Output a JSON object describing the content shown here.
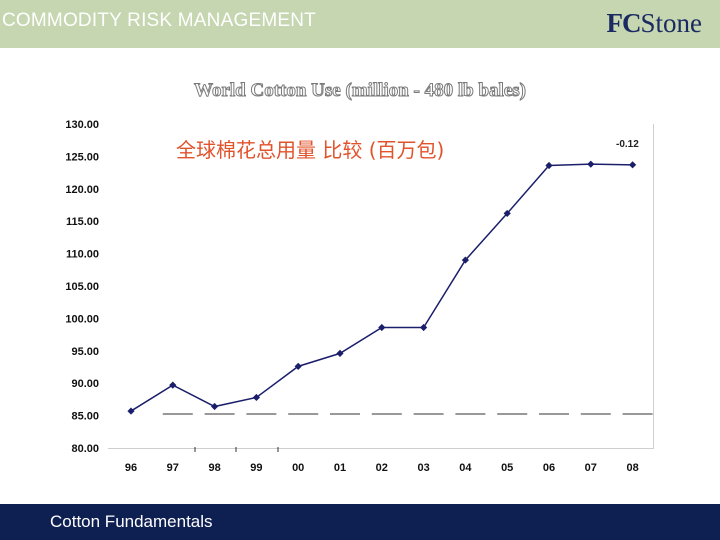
{
  "header": {
    "title": "COMMODITY RISK MANAGEMENT",
    "logo_fc": "FC",
    "logo_stone": "Stone"
  },
  "footer": {
    "text": "Cotton Fundamentals"
  },
  "colors": {
    "header_bg": "#c5d6b0",
    "footer_bg": "#0e1f52",
    "series": "#1b1f6b",
    "cn_title": "#e0532b"
  },
  "chart_data": {
    "type": "line",
    "title": "World Cotton Use (million - 480 lb bales)",
    "subtitle": "全球棉花总用量 比较 (百万包)",
    "annotation": "-0.12",
    "categories": [
      "96",
      "97",
      "98",
      "99",
      "00",
      "01",
      "02",
      "03",
      "04",
      "05",
      "06",
      "07",
      "08"
    ],
    "series": [
      {
        "values": [
          85.7,
          89.7,
          86.4,
          87.8,
          92.6,
          94.6,
          98.6,
          98.6,
          109.0,
          116.2,
          123.6,
          123.8,
          123.7
        ]
      }
    ],
    "yticks": [
      "130.00",
      "125.00",
      "120.00",
      "115.00",
      "110.00",
      "105.00",
      "100.00",
      "95.00",
      "90.00",
      "85.00",
      "80.00"
    ],
    "ylim": [
      80,
      130
    ],
    "grid": false
  }
}
